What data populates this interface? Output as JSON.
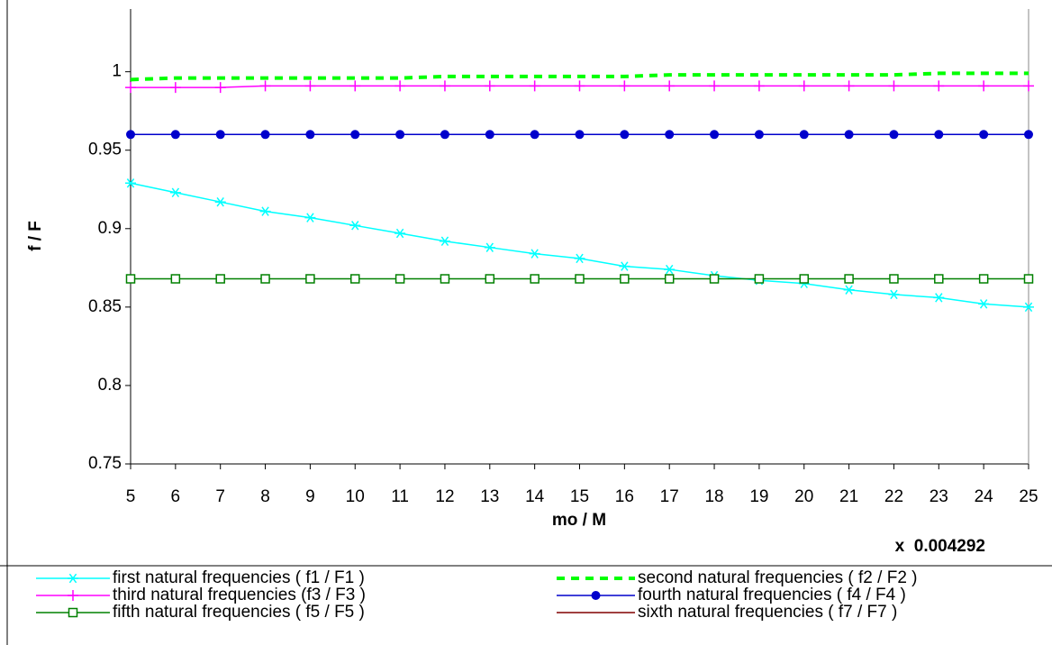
{
  "chart_data": {
    "type": "line",
    "x_label": "mo / M",
    "y_label": "f / F",
    "annotation": "x  0.004292",
    "x": [
      5,
      6,
      7,
      8,
      9,
      10,
      11,
      12,
      13,
      14,
      15,
      16,
      17,
      18,
      19,
      20,
      21,
      22,
      23,
      24,
      25
    ],
    "xlim": [
      5,
      25
    ],
    "xticks": [
      5,
      6,
      7,
      8,
      9,
      10,
      11,
      12,
      13,
      14,
      15,
      16,
      17,
      18,
      19,
      20,
      21,
      22,
      23,
      24,
      25
    ],
    "ylim": [
      0.75,
      1.04
    ],
    "yticks": [
      0.75,
      0.8,
      0.85,
      0.9,
      0.95,
      1
    ],
    "grid": false,
    "series": [
      {
        "name": "first natural frequencies ( f1 / F1 )",
        "color": "#00ffff",
        "marker": "star",
        "dash": false,
        "values": [
          0.929,
          0.923,
          0.917,
          0.911,
          0.907,
          0.902,
          0.897,
          0.892,
          0.888,
          0.884,
          0.881,
          0.876,
          0.874,
          0.87,
          0.867,
          0.865,
          0.861,
          0.858,
          0.856,
          0.852,
          0.85
        ]
      },
      {
        "name": "second natural frequencies ( f2 / F2 )",
        "color": "#00ff00",
        "marker": "none",
        "dash": true,
        "values": [
          0.995,
          0.996,
          0.996,
          0.996,
          0.996,
          0.996,
          0.996,
          0.997,
          0.997,
          0.997,
          0.997,
          0.997,
          0.998,
          0.998,
          0.998,
          0.998,
          0.998,
          0.998,
          0.999,
          0.999,
          0.999
        ]
      },
      {
        "name": "third natural frequencies (f3 / F3 )",
        "color": "#ff00ff",
        "marker": "plus",
        "dash": false,
        "values": [
          0.99,
          0.99,
          0.99,
          0.991,
          0.991,
          0.991,
          0.991,
          0.991,
          0.991,
          0.991,
          0.991,
          0.991,
          0.991,
          0.991,
          0.991,
          0.991,
          0.991,
          0.991,
          0.991,
          0.991,
          0.991
        ]
      },
      {
        "name": "fourth natural frequencies ( f4 / F4 )",
        "color": "#0000cc",
        "marker": "circle",
        "dash": false,
        "values": [
          0.96,
          0.96,
          0.96,
          0.96,
          0.96,
          0.96,
          0.96,
          0.96,
          0.96,
          0.96,
          0.96,
          0.96,
          0.96,
          0.96,
          0.96,
          0.96,
          0.96,
          0.96,
          0.96,
          0.96,
          0.96
        ]
      },
      {
        "name": "fifth natural frequencies ( f5 / F5 )",
        "color": "#008000",
        "marker": "square",
        "dash": false,
        "values": [
          0.868,
          0.868,
          0.868,
          0.868,
          0.868,
          0.868,
          0.868,
          0.868,
          0.868,
          0.868,
          0.868,
          0.868,
          0.868,
          0.868,
          0.868,
          0.868,
          0.868,
          0.868,
          0.868,
          0.868,
          0.868
        ]
      },
      {
        "name": "sixth natural frequencies ( f7 / F7 )",
        "color": "#800000",
        "marker": "none",
        "dash": false,
        "values": [
          null,
          null,
          null,
          null,
          null,
          null,
          null,
          null,
          null,
          null,
          null,
          null,
          null,
          null,
          null,
          null,
          null,
          null,
          null,
          null,
          null
        ]
      }
    ]
  }
}
